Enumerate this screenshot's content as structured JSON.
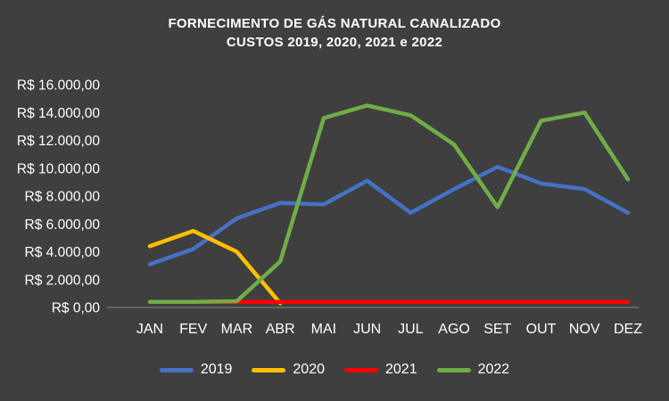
{
  "title": {
    "line1": "FORNECIMENTO DE GÁS NATURAL CANALIZADO",
    "line2": "CUSTOS 2019, 2020, 2021 e 2022"
  },
  "colors": {
    "background": "#3F3F3F",
    "text": "#FFFFFF",
    "axis_line": "#A6A6A6"
  },
  "chart_data": {
    "type": "line",
    "title": "FORNECIMENTO DE GÁS NATURAL CANALIZADO CUSTOS 2019, 2020, 2021 e 2022",
    "xlabel": "",
    "ylabel": "",
    "ylim": [
      0,
      16000
    ],
    "ytick_step": 2000,
    "grid": false,
    "legend_position": "bottom",
    "categories": [
      "JAN",
      "FEV",
      "MAR",
      "ABR",
      "MAI",
      "JUN",
      "JUL",
      "AGO",
      "SET",
      "OUT",
      "NOV",
      "DEZ"
    ],
    "ytick_labels": [
      "R$ 0,00",
      "R$ 2.000,00",
      "R$ 4.000,00",
      "R$ 6.000,00",
      "R$ 8.000,00",
      "R$ 10.000,00",
      "R$ 12.000,00",
      "R$ 14.000,00",
      "R$ 16.000,00"
    ],
    "series": [
      {
        "name": "2019",
        "color": "#4472C4",
        "values": [
          3100,
          4200,
          6400,
          7500,
          7400,
          9100,
          6800,
          8500,
          10100,
          8900,
          8500,
          6800
        ]
      },
      {
        "name": "2020",
        "color": "#FFC000",
        "values": [
          4400,
          5500,
          4000,
          300,
          null,
          null,
          null,
          null,
          null,
          null,
          null,
          null
        ]
      },
      {
        "name": "2021",
        "color": "#FF0000",
        "values": [
          400,
          400,
          400,
          400,
          400,
          400,
          400,
          400,
          400,
          400,
          400,
          400
        ]
      },
      {
        "name": "2022",
        "color": "#70AD47",
        "values": [
          400,
          400,
          450,
          3300,
          13600,
          14500,
          13800,
          11700,
          7200,
          13400,
          14000,
          9200
        ]
      }
    ]
  }
}
